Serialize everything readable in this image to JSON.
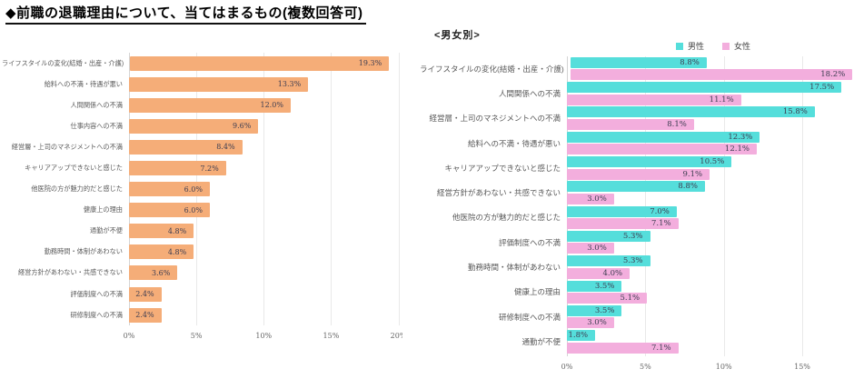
{
  "title": "◆前職の退職理由について、当てはまるもの(複数回答可)",
  "colors": {
    "bar_orange": "#F5AD78",
    "male_teal": "#55DEDB",
    "female_pink": "#F3AEDD",
    "grid": "#E9E9E9",
    "axis": "#D4D4D4",
    "category_text": "#595959",
    "value_text": "#3E3E52"
  },
  "chart_data": [
    {
      "type": "bar",
      "orientation": "horizontal",
      "categories": [
        "ライフスタイルの変化(結婚・出産・介護)",
        "給料への不満・待遇が悪い",
        "人間関係への不満",
        "仕事内容への不満",
        "経営層・上司のマネジメントへの不満",
        "キャリアアップできないと感じた",
        "他医院の方が魅力的だと感じた",
        "健康上の理由",
        "通勤が不便",
        "勤務時間・体制があわない",
        "経営方針があわない・共感できない",
        "評価制度への不満",
        "研修制度への不満"
      ],
      "values": [
        19.3,
        13.3,
        12.0,
        9.6,
        8.4,
        7.2,
        6.0,
        6.0,
        4.8,
        4.8,
        3.6,
        2.4,
        2.4
      ],
      "bar_color": "#F5AD78",
      "xlim": [
        0,
        20.3
      ],
      "ticks": [
        0,
        5,
        10,
        15,
        20
      ],
      "tick_suffix": "%",
      "value_suffix": "%",
      "grid": true
    },
    {
      "type": "bar",
      "orientation": "horizontal",
      "title": "<男女別>",
      "legend_position": "top-right",
      "categories": [
        "ライフスタイルの変化(結婚・出産・介護)",
        "人間関係への不満",
        "経営層・上司のマネジメントへの不満",
        "給料への不満・待遇が悪い",
        "キャリアアップできないと感じた",
        "経営方針があわない・共感できない",
        "他医院の方が魅力的だと感じた",
        "評価制度への不満",
        "勤務時間・体制があわない",
        "健康上の理由",
        "研修制度への不満",
        "通勤が不便"
      ],
      "series": [
        {
          "key": "male",
          "name": "男性",
          "color": "#55DEDB",
          "values": [
            8.8,
            17.5,
            15.8,
            12.3,
            10.5,
            8.8,
            7.0,
            5.3,
            5.3,
            3.5,
            3.5,
            1.8
          ]
        },
        {
          "key": "female",
          "name": "女性",
          "color": "#F3AEDD",
          "values": [
            18.2,
            11.1,
            8.1,
            12.1,
            9.1,
            3.0,
            7.1,
            3.0,
            4.0,
            5.1,
            3.0,
            7.1
          ]
        }
      ],
      "xlim": [
        0,
        18.3
      ],
      "ticks": [
        0,
        5,
        10,
        15
      ],
      "tick_suffix": "%",
      "value_suffix": "%",
      "grid": true
    }
  ]
}
